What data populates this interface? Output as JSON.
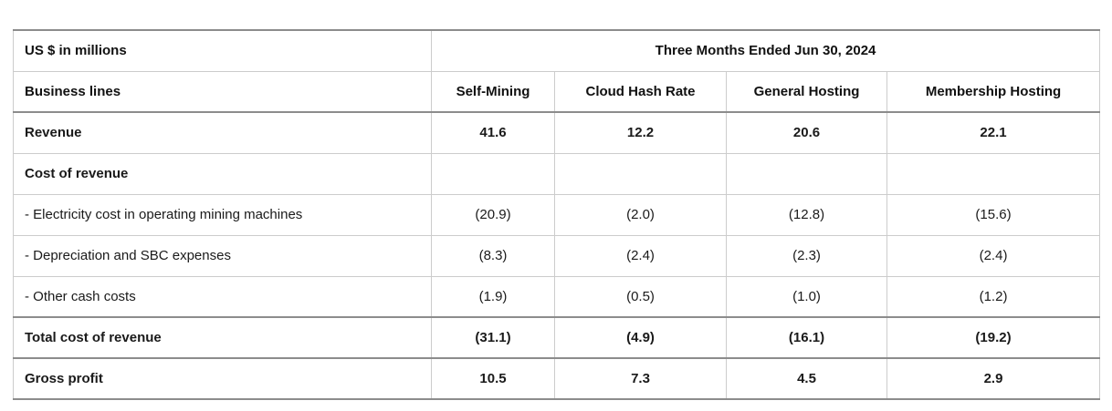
{
  "chart_data": {
    "type": "table",
    "unit_label": "US $ in millions",
    "period_header": "Three Months Ended Jun 30, 2024",
    "row_header": "Business lines",
    "columns": [
      "Self-Mining",
      "Cloud Hash Rate",
      "General Hosting",
      "Membership Hosting"
    ],
    "rows": [
      {
        "label": "Revenue",
        "bold": true,
        "strong_top": false,
        "values": [
          "41.6",
          "12.2",
          "20.6",
          "22.1"
        ]
      },
      {
        "label": "Cost of revenue",
        "bold": true,
        "strong_top": false,
        "values": [
          "",
          "",
          "",
          ""
        ]
      },
      {
        "label": "- Electricity cost in operating mining machines",
        "bold": false,
        "strong_top": false,
        "values": [
          "(20.9)",
          "(2.0)",
          "(12.8)",
          "(15.6)"
        ]
      },
      {
        "label": "- Depreciation and SBC expenses",
        "bold": false,
        "strong_top": false,
        "values": [
          "(8.3)",
          "(2.4)",
          "(2.3)",
          "(2.4)"
        ]
      },
      {
        "label": "- Other cash costs",
        "bold": false,
        "strong_top": false,
        "values": [
          "(1.9)",
          "(0.5)",
          "(1.0)",
          "(1.2)"
        ]
      },
      {
        "label": "Total cost of revenue",
        "bold": true,
        "strong_top": true,
        "values": [
          "(31.1)",
          "(4.9)",
          "(16.1)",
          "(19.2)"
        ]
      },
      {
        "label": "Gross profit",
        "bold": true,
        "strong_top": true,
        "values": [
          "10.5",
          "7.3",
          "4.5",
          "2.9"
        ]
      }
    ]
  }
}
